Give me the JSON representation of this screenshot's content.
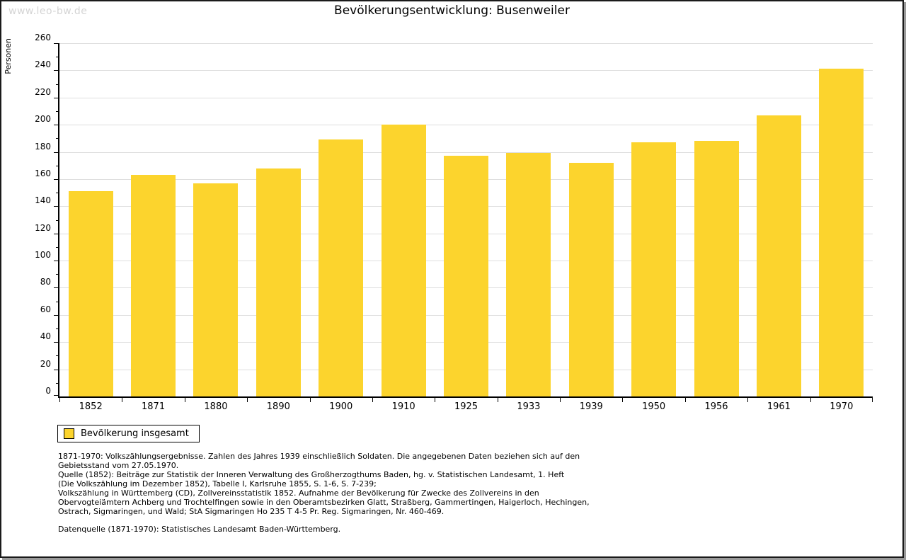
{
  "watermark": "www.leo-bw.de",
  "header": {
    "title": "Bevölkerungsentwicklung: Busenweiler"
  },
  "chart_data": {
    "type": "bar",
    "title": "Bevölkerungsentwicklung: Busenweiler",
    "xlabel": "",
    "ylabel": "Personen",
    "categories": [
      "1852",
      "1871",
      "1880",
      "1890",
      "1900",
      "1910",
      "1925",
      "1933",
      "1939",
      "1950",
      "1956",
      "1961",
      "1970"
    ],
    "values": [
      151,
      163,
      157,
      168,
      189,
      200,
      177,
      179,
      172,
      187,
      188,
      207,
      241
    ],
    "series_name": "Bevölkerung insgesamt",
    "ylim": [
      0,
      260
    ],
    "ytick_step": 20,
    "yminor_step": 10,
    "grid": true,
    "legend_position": "bottom-left",
    "bar_color": "#fcd42d"
  },
  "legend": {
    "label": "Bevölkerung insgesamt",
    "swatch_color": "#fcd42d"
  },
  "footnotes": {
    "lines": [
      "1871-1970: Volkszählungsergebnisse. Zahlen des Jahres 1939 einschließlich Soldaten. Die angegebenen Daten beziehen sich auf den",
      "Gebietsstand vom 27.05.1970.",
      "Quelle (1852): Beiträge zur Statistik der Inneren Verwaltung des Großherzogthums Baden, hg. v. Statistischen Landesamt, 1. Heft",
      "(Die Volkszählung im Dezember 1852), Tabelle I, Karlsruhe 1855, S. 1-6, S. 7-239;",
      "Volkszählung in Württemberg (CD), Zollvereinsstatistik 1852. Aufnahme der Bevölkerung für Zwecke des Zollvereins in den",
      "Obervogteiämtern Achberg und Trochtelfingen sowie in den Oberamtsbezirken Glatt, Straßberg, Gammertingen, Haigerloch, Hechingen,",
      "Ostrach, Sigmaringen, und Wald; StA Sigmaringen Ho 235 T 4-5 Pr. Reg. Sigmaringen, Nr. 460-469."
    ],
    "datasource": "Datenquelle (1871-1970): Statistisches Landesamt Baden-Württemberg."
  },
  "colors": {
    "bar": "#fcd42d",
    "grid": "#dedede",
    "axis": "#000000",
    "watermark": "#d4d4d4"
  }
}
